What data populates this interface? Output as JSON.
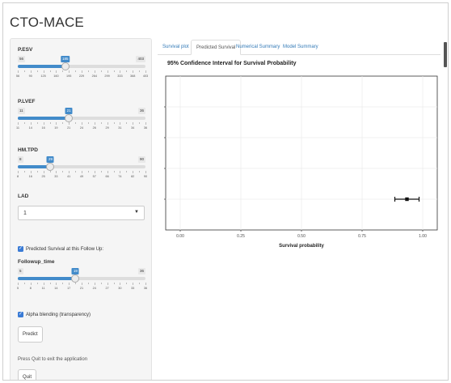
{
  "app": {
    "title": "CTO-MACE"
  },
  "sidebar": {
    "sliders": [
      {
        "key": "pesv",
        "label": "P.ESV",
        "min": 56,
        "max": 403,
        "value": 185,
        "tick_labels": [
          "56",
          "90",
          "125",
          "160",
          "195",
          "229",
          "264",
          "299",
          "333",
          "368",
          "403"
        ]
      },
      {
        "key": "plvef",
        "label": "P.LVEF",
        "min": 11,
        "max": 36,
        "value": 21,
        "tick_labels": [
          "11",
          "14",
          "16",
          "19",
          "21",
          "24",
          "26",
          "29",
          "31",
          "34",
          "36"
        ]
      },
      {
        "key": "hmtpd",
        "label": "HM.TPD",
        "min": 8,
        "max": 90,
        "value": 29,
        "tick_labels": [
          "8",
          "16",
          "25",
          "33",
          "41",
          "49",
          "57",
          "66",
          "74",
          "82",
          "90"
        ]
      },
      {
        "key": "followup",
        "label": "Followup_time",
        "min": 5,
        "max": 36,
        "value": 19,
        "tick_labels": [
          "5",
          "8",
          "11",
          "14",
          "17",
          "21",
          "24",
          "27",
          "30",
          "33",
          "36"
        ]
      }
    ],
    "lad": {
      "label": "LAD",
      "selected": "1"
    },
    "show_predicted": {
      "label": "Predicted Survival at this Follow Up:",
      "checked": true
    },
    "alpha": {
      "label": "Alpha blending (transparency)",
      "checked": true
    },
    "predict_button": "Predict",
    "quit_help": "Press Quit to exit the application",
    "quit_button": "Quit"
  },
  "tabs": [
    {
      "key": "survival-plot",
      "label": "Survival plot",
      "active": false
    },
    {
      "key": "predicted-survival",
      "label": "Predicted Survival",
      "active": true
    },
    {
      "key": "numerical-summary",
      "label": "Numerical Summary",
      "active": false
    },
    {
      "key": "model-summary",
      "label": "Model Summary",
      "active": false
    }
  ],
  "chart_data": {
    "type": "scatter",
    "title": "95% Confidence Interval for Survival Probability",
    "xlabel": "Survival probability",
    "ylabel": "",
    "xlim": [
      -0.06,
      1.06
    ],
    "xticks": [
      "0.00",
      "0.25",
      "0.50",
      "0.75",
      "1.00"
    ],
    "grid": true,
    "points": [
      {
        "x": 0.935,
        "lower": 0.885,
        "upper": 0.985
      }
    ]
  }
}
